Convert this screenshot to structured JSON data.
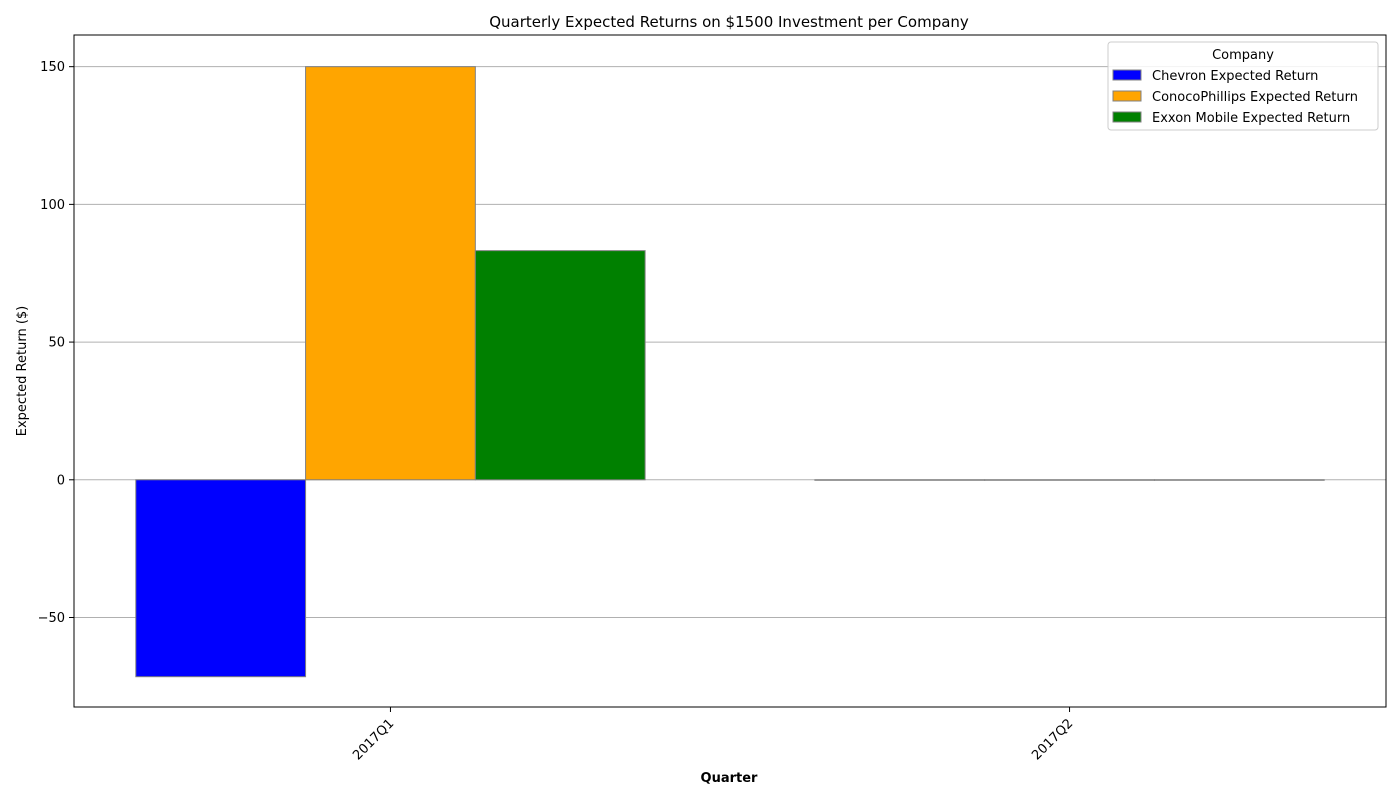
{
  "chart_data": {
    "type": "bar",
    "title": "Quarterly Expected Returns on $1500 Investment per Company",
    "xlabel": "Quarter",
    "ylabel": "Expected Return ($)",
    "categories": [
      "2017Q1",
      "2017Q2"
    ],
    "series": [
      {
        "name": "Chevron Expected Return",
        "values": [
          -71.5,
          0
        ],
        "color": "#0000ff"
      },
      {
        "name": "ConocoPhillips Expected Return",
        "values": [
          150,
          0
        ],
        "color": "#ffa500"
      },
      {
        "name": "Exxon Mobile Expected Return",
        "values": [
          83.2,
          0
        ],
        "color": "#008000"
      }
    ],
    "ylim": [
      -82.5,
      161.5
    ],
    "yticks": [
      -50,
      0,
      50,
      100,
      150
    ],
    "ytick_labels": [
      "−50",
      "0",
      "50",
      "100",
      "150"
    ],
    "grid": "horizontal",
    "legend": {
      "title": "Company",
      "placement": "top-right"
    },
    "bar_edge_color": "#808080",
    "grid_color": "#b0b0b0"
  }
}
